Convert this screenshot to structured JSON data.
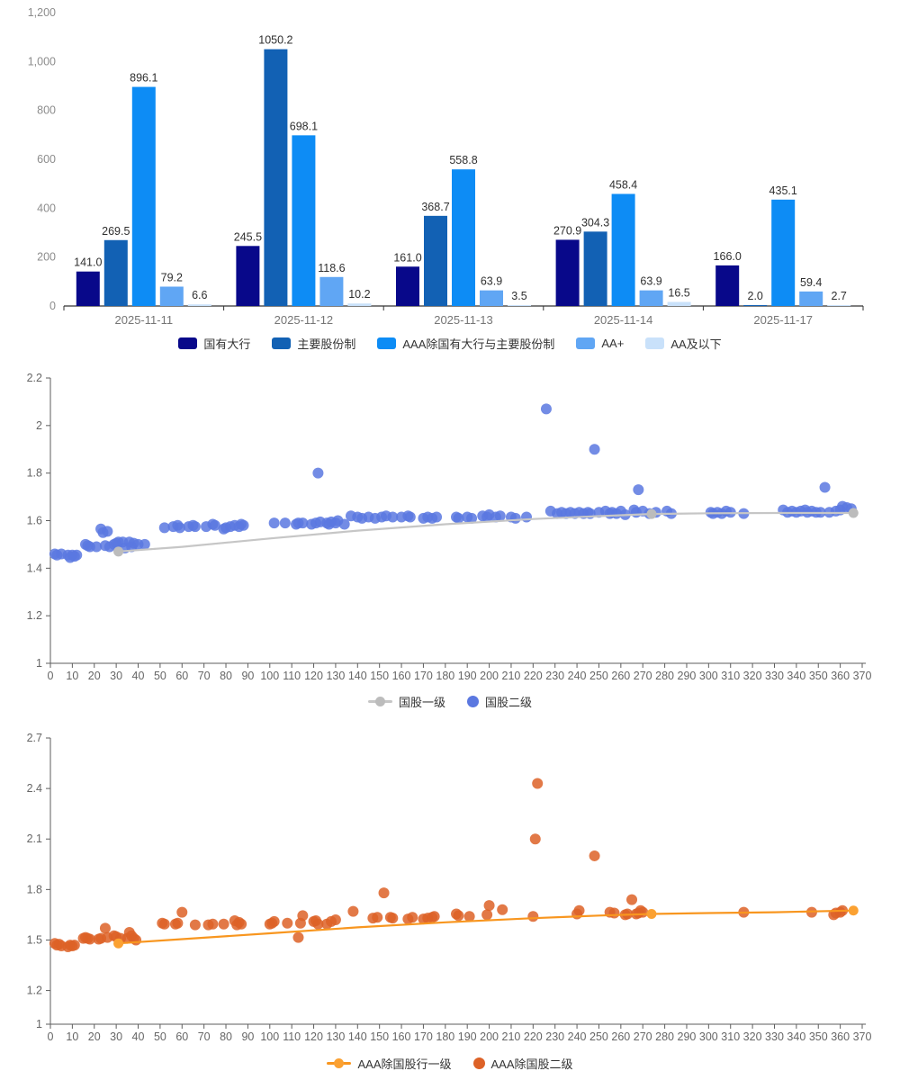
{
  "bar_chart": {
    "type": "bar",
    "categories": [
      "2025-11-11",
      "2025-11-12",
      "2025-11-13",
      "2025-11-14",
      "2025-11-17"
    ],
    "series": [
      {
        "name": "国有大行",
        "color": "#08088a",
        "values": [
          141.0,
          245.5,
          161.0,
          270.9,
          166.0
        ]
      },
      {
        "name": "主要股份制",
        "color": "#1261b4",
        "values": [
          269.5,
          1050.2,
          368.7,
          304.3,
          2.0
        ]
      },
      {
        "name": "AAA除国有大行与主要股份制",
        "color": "#0d8cf5",
        "values": [
          896.1,
          698.1,
          558.8,
          458.4,
          435.1
        ]
      },
      {
        "name": "AA+",
        "color": "#60a6f4",
        "values": [
          79.2,
          118.6,
          63.9,
          63.9,
          59.4
        ]
      },
      {
        "name": "AA及以下",
        "color": "#c9e1fa",
        "values": [
          6.6,
          10.2,
          3.5,
          16.5,
          2.7
        ]
      }
    ],
    "y_axis": {
      "tick_labels": [
        "0",
        "200",
        "400",
        "600",
        "800",
        "1,000",
        "1,200"
      ],
      "tick_values": [
        0,
        200,
        400,
        600,
        800,
        1000,
        1200
      ],
      "max": 1200
    },
    "axis_color": "#333333",
    "category_label_color": "#757575",
    "tick_label_color": "#8c8c8c",
    "value_label_color": "#2f2f2f"
  },
  "scatter_chart_1": {
    "type": "scatter",
    "x_axis": {
      "min": 0,
      "max": 370,
      "step": 10
    },
    "y_axis": {
      "tick_labels": [
        "1",
        "1.2",
        "1.4",
        "1.6",
        "1.8",
        "2",
        "2.2"
      ],
      "tick_values": [
        1,
        1.2,
        1.4,
        1.6,
        1.8,
        2,
        2.2
      ],
      "min": 1,
      "max": 2.2
    },
    "axis_color": "#5e5e5e",
    "tick_label_color": "#666666",
    "line": {
      "name": "国股一级",
      "color": "#c6c6c6",
      "marker_color": "#bcbcbc",
      "points": [
        [
          31,
          1.47
        ],
        [
          60,
          1.49
        ],
        [
          100,
          1.525
        ],
        [
          140,
          1.558
        ],
        [
          180,
          1.585
        ],
        [
          220,
          1.607
        ],
        [
          250,
          1.619
        ],
        [
          274,
          1.628
        ],
        [
          300,
          1.631
        ],
        [
          330,
          1.632
        ],
        [
          366,
          1.632
        ]
      ],
      "markers": [
        [
          31,
          1.47
        ],
        [
          274,
          1.628
        ],
        [
          366,
          1.632
        ]
      ]
    },
    "scatter": {
      "name": "国股二级",
      "color": "#5b78e0",
      "points": [
        [
          2,
          1.46
        ],
        [
          3,
          1.455
        ],
        [
          5,
          1.46
        ],
        [
          8,
          1.455
        ],
        [
          9,
          1.445
        ],
        [
          10,
          1.455
        ],
        [
          11,
          1.45
        ],
        [
          12,
          1.455
        ],
        [
          16,
          1.5
        ],
        [
          17,
          1.495
        ],
        [
          18,
          1.49
        ],
        [
          21,
          1.49
        ],
        [
          23,
          1.565
        ],
        [
          24,
          1.55
        ],
        [
          25,
          1.495
        ],
        [
          26,
          1.555
        ],
        [
          27,
          1.49
        ],
        [
          29,
          1.5
        ],
        [
          30,
          1.505
        ],
        [
          31,
          1.51
        ],
        [
          33,
          1.51
        ],
        [
          34,
          1.485
        ],
        [
          36,
          1.51
        ],
        [
          37,
          1.49
        ],
        [
          38,
          1.505
        ],
        [
          40,
          1.5
        ],
        [
          43,
          1.5
        ],
        [
          52,
          1.57
        ],
        [
          56,
          1.575
        ],
        [
          58,
          1.58
        ],
        [
          59,
          1.57
        ],
        [
          63,
          1.575
        ],
        [
          65,
          1.58
        ],
        [
          66,
          1.575
        ],
        [
          71,
          1.575
        ],
        [
          74,
          1.585
        ],
        [
          75,
          1.58
        ],
        [
          79,
          1.565
        ],
        [
          80,
          1.57
        ],
        [
          82,
          1.575
        ],
        [
          84,
          1.58
        ],
        [
          86,
          1.575
        ],
        [
          87,
          1.585
        ],
        [
          88,
          1.58
        ],
        [
          102,
          1.59
        ],
        [
          107,
          1.59
        ],
        [
          112,
          1.585
        ],
        [
          113,
          1.59
        ],
        [
          115,
          1.59
        ],
        [
          119,
          1.585
        ],
        [
          121,
          1.59
        ],
        [
          122,
          1.8
        ],
        [
          123,
          1.595
        ],
        [
          126,
          1.59
        ],
        [
          127,
          1.585
        ],
        [
          128,
          1.595
        ],
        [
          130,
          1.59
        ],
        [
          131,
          1.6
        ],
        [
          134,
          1.585
        ],
        [
          137,
          1.62
        ],
        [
          140,
          1.615
        ],
        [
          142,
          1.61
        ],
        [
          145,
          1.615
        ],
        [
          148,
          1.61
        ],
        [
          151,
          1.615
        ],
        [
          153,
          1.62
        ],
        [
          156,
          1.615
        ],
        [
          160,
          1.615
        ],
        [
          163,
          1.62
        ],
        [
          164,
          1.615
        ],
        [
          170,
          1.61
        ],
        [
          172,
          1.615
        ],
        [
          174,
          1.61
        ],
        [
          176,
          1.615
        ],
        [
          185,
          1.615
        ],
        [
          186,
          1.61
        ],
        [
          190,
          1.615
        ],
        [
          192,
          1.61
        ],
        [
          197,
          1.62
        ],
        [
          199,
          1.615
        ],
        [
          200,
          1.625
        ],
        [
          203,
          1.615
        ],
        [
          205,
          1.62
        ],
        [
          210,
          1.615
        ],
        [
          212,
          1.61
        ],
        [
          217,
          1.615
        ],
        [
          226,
          2.07
        ],
        [
          228,
          1.64
        ],
        [
          231,
          1.63
        ],
        [
          233,
          1.635
        ],
        [
          235,
          1.63
        ],
        [
          237,
          1.635
        ],
        [
          239,
          1.63
        ],
        [
          241,
          1.635
        ],
        [
          243,
          1.63
        ],
        [
          245,
          1.635
        ],
        [
          246,
          1.63
        ],
        [
          248,
          1.9
        ],
        [
          250,
          1.635
        ],
        [
          253,
          1.64
        ],
        [
          255,
          1.63
        ],
        [
          256,
          1.635
        ],
        [
          258,
          1.63
        ],
        [
          260,
          1.64
        ],
        [
          262,
          1.625
        ],
        [
          266,
          1.645
        ],
        [
          267,
          1.635
        ],
        [
          268,
          1.73
        ],
        [
          270,
          1.64
        ],
        [
          273,
          1.63
        ],
        [
          276,
          1.635
        ],
        [
          281,
          1.64
        ],
        [
          283,
          1.63
        ],
        [
          301,
          1.635
        ],
        [
          302,
          1.63
        ],
        [
          304,
          1.635
        ],
        [
          306,
          1.63
        ],
        [
          308,
          1.64
        ],
        [
          310,
          1.635
        ],
        [
          316,
          1.63
        ],
        [
          334,
          1.645
        ],
        [
          336,
          1.635
        ],
        [
          338,
          1.64
        ],
        [
          340,
          1.635
        ],
        [
          342,
          1.64
        ],
        [
          344,
          1.645
        ],
        [
          345,
          1.635
        ],
        [
          347,
          1.64
        ],
        [
          349,
          1.635
        ],
        [
          351,
          1.635
        ],
        [
          353,
          1.74
        ],
        [
          355,
          1.635
        ],
        [
          358,
          1.64
        ],
        [
          360,
          1.645
        ],
        [
          361,
          1.66
        ],
        [
          363,
          1.655
        ],
        [
          365,
          1.65
        ]
      ]
    }
  },
  "scatter_chart_2": {
    "type": "scatter",
    "x_axis": {
      "min": 0,
      "max": 370,
      "step": 10
    },
    "y_axis": {
      "tick_labels": [
        "1",
        "1.2",
        "1.5",
        "1.8",
        "2.1",
        "2.4",
        "2.7"
      ],
      "tick_values": [
        1,
        1.2,
        1.5,
        1.8,
        2.1,
        2.4,
        2.7
      ],
      "min": 1,
      "max": 2.7
    },
    "axis_color": "#5e5e5e",
    "tick_label_color": "#666666",
    "line": {
      "name": "AAA除国股行一级",
      "color": "#f8961f",
      "marker_color": "#fba132",
      "points": [
        [
          31,
          1.48
        ],
        [
          60,
          1.505
        ],
        [
          100,
          1.54
        ],
        [
          140,
          1.575
        ],
        [
          180,
          1.605
        ],
        [
          220,
          1.63
        ],
        [
          250,
          1.645
        ],
        [
          274,
          1.655
        ],
        [
          300,
          1.66
        ],
        [
          330,
          1.665
        ],
        [
          366,
          1.675
        ]
      ],
      "markers": [
        [
          31,
          1.48
        ],
        [
          274,
          1.655
        ],
        [
          366,
          1.675
        ]
      ]
    },
    "scatter": {
      "name": "AAA除国股二级",
      "color": "#dd6227",
      "points": [
        [
          2,
          1.48
        ],
        [
          3,
          1.47
        ],
        [
          4,
          1.475
        ],
        [
          5,
          1.465
        ],
        [
          8,
          1.46
        ],
        [
          9,
          1.47
        ],
        [
          10,
          1.465
        ],
        [
          11,
          1.47
        ],
        [
          15,
          1.51
        ],
        [
          16,
          1.515
        ],
        [
          17,
          1.51
        ],
        [
          18,
          1.505
        ],
        [
          22,
          1.505
        ],
        [
          23,
          1.51
        ],
        [
          25,
          1.57
        ],
        [
          26,
          1.515
        ],
        [
          29,
          1.525
        ],
        [
          30,
          1.52
        ],
        [
          32,
          1.51
        ],
        [
          35,
          1.51
        ],
        [
          36,
          1.545
        ],
        [
          37,
          1.525
        ],
        [
          38,
          1.51
        ],
        [
          39,
          1.5
        ],
        [
          51,
          1.6
        ],
        [
          52,
          1.595
        ],
        [
          57,
          1.595
        ],
        [
          58,
          1.6
        ],
        [
          60,
          1.665
        ],
        [
          66,
          1.59
        ],
        [
          72,
          1.59
        ],
        [
          74,
          1.595
        ],
        [
          79,
          1.595
        ],
        [
          84,
          1.615
        ],
        [
          85,
          1.59
        ],
        [
          86,
          1.605
        ],
        [
          87,
          1.595
        ],
        [
          100,
          1.595
        ],
        [
          101,
          1.6
        ],
        [
          102,
          1.61
        ],
        [
          108,
          1.6
        ],
        [
          113,
          1.515
        ],
        [
          114,
          1.6
        ],
        [
          115,
          1.645
        ],
        [
          120,
          1.61
        ],
        [
          121,
          1.615
        ],
        [
          122,
          1.595
        ],
        [
          126,
          1.595
        ],
        [
          128,
          1.61
        ],
        [
          130,
          1.62
        ],
        [
          138,
          1.67
        ],
        [
          147,
          1.63
        ],
        [
          149,
          1.635
        ],
        [
          152,
          1.78
        ],
        [
          155,
          1.635
        ],
        [
          156,
          1.63
        ],
        [
          163,
          1.625
        ],
        [
          165,
          1.635
        ],
        [
          170,
          1.625
        ],
        [
          172,
          1.63
        ],
        [
          174,
          1.635
        ],
        [
          175,
          1.64
        ],
        [
          185,
          1.655
        ],
        [
          186,
          1.645
        ],
        [
          191,
          1.64
        ],
        [
          199,
          1.65
        ],
        [
          200,
          1.705
        ],
        [
          206,
          1.68
        ],
        [
          220,
          1.64
        ],
        [
          221,
          2.1
        ],
        [
          222,
          2.43
        ],
        [
          240,
          1.655
        ],
        [
          241,
          1.675
        ],
        [
          248,
          2.0
        ],
        [
          255,
          1.665
        ],
        [
          257,
          1.66
        ],
        [
          262,
          1.65
        ],
        [
          263,
          1.655
        ],
        [
          265,
          1.74
        ],
        [
          267,
          1.655
        ],
        [
          268,
          1.66
        ],
        [
          269,
          1.675
        ],
        [
          270,
          1.665
        ],
        [
          316,
          1.665
        ],
        [
          347,
          1.665
        ],
        [
          357,
          1.65
        ],
        [
          358,
          1.66
        ],
        [
          360,
          1.665
        ],
        [
          361,
          1.675
        ]
      ]
    }
  },
  "chart_data": [
    {
      "type": "bar",
      "categories": [
        "2025-11-11",
        "2025-11-12",
        "2025-11-13",
        "2025-11-14",
        "2025-11-17"
      ],
      "series": [
        {
          "name": "国有大行",
          "values": [
            141.0,
            245.5,
            161.0,
            270.9,
            166.0
          ]
        },
        {
          "name": "主要股份制",
          "values": [
            269.5,
            1050.2,
            368.7,
            304.3,
            2.0
          ]
        },
        {
          "name": "AAA除国有大行与主要股份制",
          "values": [
            896.1,
            698.1,
            558.8,
            458.4,
            435.1
          ]
        },
        {
          "name": "AA+",
          "values": [
            79.2,
            118.6,
            63.9,
            63.9,
            59.4
          ]
        },
        {
          "name": "AA及以下",
          "values": [
            6.6,
            10.2,
            3.5,
            16.5,
            2.7
          ]
        }
      ],
      "ylim": [
        0,
        1200
      ],
      "legend_position": "bottom"
    },
    {
      "type": "scatter",
      "title": "",
      "xlim": [
        0,
        370
      ],
      "ylim": [
        1,
        2.2
      ],
      "series_note": "line 国股一级 from (31,1.47) to (366,1.63); scatter 国股二级 clustered 1.45-1.65 with outliers (122,1.8),(226,2.07),(248,1.9),(268,1.73),(353,1.74)",
      "legend_position": "bottom"
    },
    {
      "type": "scatter",
      "title": "",
      "xlim": [
        0,
        370
      ],
      "ylim": [
        1,
        2.7
      ],
      "series_note": "line AAA除国股行一级 from (31,1.48) to (366,1.68); scatter AAA除国股二级 clustered 1.46-1.7 with outliers (152,1.78),(221,2.1),(222,2.43),(248,2.0),(265,1.74)",
      "legend_position": "bottom"
    }
  ]
}
